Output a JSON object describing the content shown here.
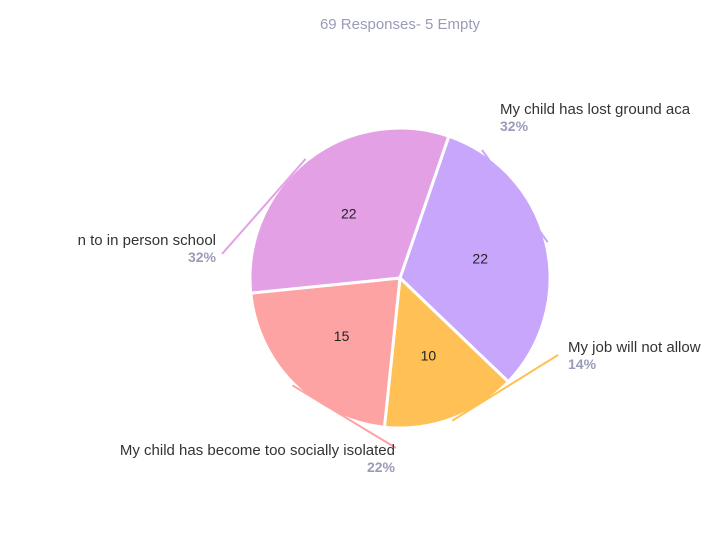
{
  "chart_data": {
    "type": "pie",
    "subtitle": "69 Responses- 5 Empty",
    "slices": [
      {
        "label": "My child has lost ground academically",
        "shown_label": "My child has lost ground aca",
        "value": 22,
        "percent": "32%",
        "color": "#c7a6fc"
      },
      {
        "label": "My job will not allow",
        "shown_label": "My job will not allow",
        "value": 10,
        "percent": "14%",
        "color": "#ffc055"
      },
      {
        "label": "My child has become too socially isolated",
        "shown_label": "My child has become too socially isolated",
        "value": 15,
        "percent": "22%",
        "color": "#fea3a3"
      },
      {
        "label": "n to in person school",
        "shown_label": "n to in person school",
        "value": 22,
        "percent": "32%",
        "color": "#e3a0e5"
      }
    ]
  }
}
